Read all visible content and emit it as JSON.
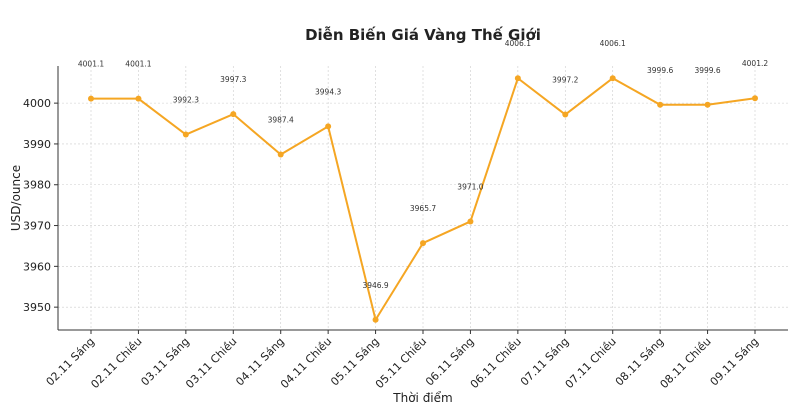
{
  "chart_data": {
    "type": "line",
    "title": "Diễn Biến Giá Vàng Thế Giới",
    "x_label": "Thời điểm",
    "y_label": "USD/ounce",
    "categories": [
      "02.11 Sáng",
      "02.11 Chiều",
      "03.11 Sáng",
      "03.11 Chiều",
      "04.11 Sáng",
      "04.11 Chiều",
      "05.11 Sáng",
      "05.11 Chiều",
      "06.11 Sáng",
      "06.11 Chiều",
      "07.11 Sáng",
      "07.11 Chiều",
      "08.11 Sáng",
      "08.11 Chiều",
      "09.11 Sáng"
    ],
    "values": [
      4001.1,
      4001.1,
      3992.3,
      3997.3,
      3987.4,
      3994.3,
      3946.9,
      3965.7,
      3971.0,
      4006.1,
      3997.2,
      4006.1,
      3999.6,
      3999.6,
      4001.2
    ],
    "value_labels": [
      "4001.1",
      "4001.1",
      "3992.3",
      "3997.3",
      "3987.4",
      "3994.3",
      "3946.9",
      "3965.7",
      "3971.0",
      "4006.1",
      "3997.2",
      "4006.1",
      "3999.6",
      "3999.6",
      "4001.2"
    ],
    "color": "#f5a623",
    "ylim": [
      3944.4,
      4009.1
    ],
    "yticks": [
      3950,
      3960,
      3970,
      3980,
      3990,
      4000
    ],
    "grid": true
  }
}
